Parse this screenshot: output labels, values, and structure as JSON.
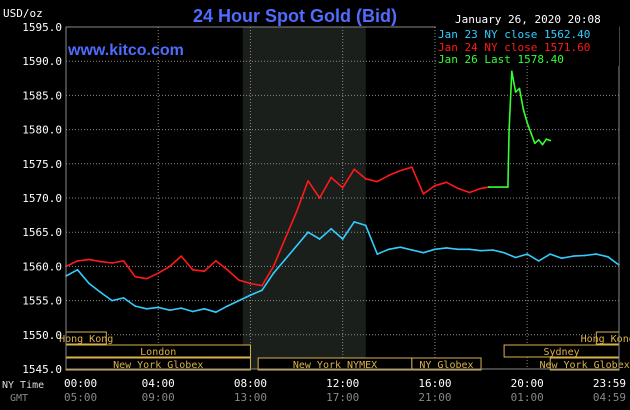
{
  "header": {
    "title": "24 Hour Spot Gold (Bid)",
    "website": "www.kitco.com",
    "timestamp": "January 26, 2020 20:08",
    "y_unit": "USD/oz"
  },
  "legend": [
    {
      "label": "Jan 23 NY close 1562.40",
      "color": "#33ccff"
    },
    {
      "label": "Jan 24 NY close 1571.60",
      "color": "#ff1a1a"
    },
    {
      "label": "Jan 26 Last 1578.40",
      "color": "#33ff33"
    }
  ],
  "colors": {
    "background": "#000000",
    "plot_background": "#000000",
    "shaded_session": "#1b1f1b",
    "grid": "#8a8a8a",
    "axis_text": "#ffffff",
    "title": "#4f6cff",
    "website": "#4f6cff",
    "session_bar_fill": "#000000",
    "session_bar_text": "#d9b24a",
    "session_bar_border": "#d9b24a"
  },
  "sessions": {
    "rows": [
      [
        {
          "label": "Hong Kong",
          "start": 0,
          "end": 105
        },
        {
          "label": "Hong Kong",
          "start": 1380,
          "end": 1439
        }
      ],
      [
        {
          "label": "London",
          "start": 0,
          "end": 480
        },
        {
          "label": "Sydney",
          "start": 1140,
          "end": 1439
        }
      ],
      [
        {
          "label": "New York Globex",
          "start": 0,
          "end": 480
        },
        {
          "label": "New York NYMEX",
          "start": 500,
          "end": 900
        },
        {
          "label": "NY Globex",
          "start": 900,
          "end": 1080
        },
        {
          "label": "New York Globex",
          "start": 1260,
          "end": 1439
        }
      ]
    ]
  },
  "bottom_labels": {
    "ny_time_label": "NY Time",
    "gmt_label": "GMT",
    "gmt_ticks": [
      "05:00",
      "09:00",
      "13:00",
      "17:00",
      "21:00",
      "01:00",
      "04:59"
    ]
  },
  "chart_data": {
    "type": "line",
    "title": "24 Hour Spot Gold (Bid)",
    "ylabel": "USD/oz",
    "xlabel": "NY Time",
    "x_unit": "minutes since 00:00 NY Time",
    "x_range": [
      0,
      1439
    ],
    "ylim": [
      1545.0,
      1595.0
    ],
    "y_ticks": [
      1545.0,
      1550.0,
      1555.0,
      1560.0,
      1565.0,
      1570.0,
      1575.0,
      1580.0,
      1585.0,
      1590.0,
      1595.0
    ],
    "y_tick_labels": [
      "1545.0",
      "1550.0",
      "1555.0",
      "1560.0",
      "1565.0",
      "1570.0",
      "1575.0",
      "1580.0",
      "1585.0",
      "1590.0",
      "1595.0"
    ],
    "x_ticks": [
      0,
      240,
      480,
      720,
      960,
      1200,
      1439
    ],
    "x_tick_labels": [
      "00:00",
      "04:00",
      "08:00",
      "12:00",
      "16:00",
      "20:00",
      "23:59"
    ],
    "grid": true,
    "shaded_x_range": [
      460,
      780
    ],
    "legend_position": "top-right",
    "series": [
      {
        "name": "Jan 23 NY close 1562.40",
        "color": "#33ccff",
        "x": [
          0,
          30,
          60,
          90,
          120,
          150,
          180,
          210,
          240,
          270,
          300,
          330,
          360,
          390,
          420,
          450,
          480,
          510,
          540,
          570,
          600,
          630,
          660,
          690,
          720,
          750,
          780,
          810,
          840,
          870,
          900,
          930,
          960,
          990,
          1020,
          1050,
          1080,
          1110,
          1140,
          1170,
          1200,
          1230,
          1260,
          1290,
          1320,
          1350,
          1380,
          1410,
          1439
        ],
        "y": [
          1558.6,
          1559.5,
          1557.5,
          1556.2,
          1555.0,
          1555.4,
          1554.2,
          1553.8,
          1554.0,
          1553.6,
          1553.9,
          1553.4,
          1553.8,
          1553.3,
          1554.2,
          1555.0,
          1555.8,
          1556.5,
          1559.0,
          1561.0,
          1563.0,
          1565.0,
          1564.0,
          1565.5,
          1564.0,
          1566.5,
          1566.0,
          1561.8,
          1562.5,
          1562.8,
          1562.4,
          1562.0,
          1562.5,
          1562.7,
          1562.5,
          1562.5,
          1562.3,
          1562.4,
          1562.0,
          1561.3,
          1561.8,
          1560.8,
          1561.8,
          1561.2,
          1561.5,
          1561.6,
          1561.8,
          1561.4,
          1560.2
        ]
      },
      {
        "name": "Jan 24 NY close 1571.60",
        "color": "#ff1a1a",
        "x": [
          0,
          30,
          60,
          90,
          120,
          150,
          180,
          210,
          240,
          270,
          300,
          330,
          360,
          390,
          420,
          450,
          480,
          510,
          540,
          570,
          600,
          630,
          660,
          690,
          720,
          750,
          780,
          810,
          840,
          870,
          900,
          930,
          960,
          990,
          1020,
          1050,
          1080,
          1100
        ],
        "y": [
          1560.0,
          1560.8,
          1561.0,
          1560.7,
          1560.5,
          1560.8,
          1558.5,
          1558.2,
          1559.0,
          1560.0,
          1561.5,
          1559.5,
          1559.3,
          1560.8,
          1559.5,
          1558.0,
          1557.5,
          1557.2,
          1560.0,
          1564.0,
          1568.0,
          1572.5,
          1570.0,
          1573.0,
          1571.5,
          1574.2,
          1572.8,
          1572.4,
          1573.3,
          1574.0,
          1574.5,
          1570.6,
          1571.8,
          1572.3,
          1571.4,
          1570.8,
          1571.4,
          1571.6
        ]
      },
      {
        "name": "Jan 26 Last 1578.40",
        "color": "#33ff33",
        "x": [
          1100,
          1150,
          1153,
          1160,
          1170,
          1180,
          1190,
          1200,
          1210,
          1220,
          1230,
          1240,
          1250,
          1260
        ],
        "y": [
          1571.6,
          1571.6,
          1580.0,
          1588.5,
          1585.5,
          1586.0,
          1583.0,
          1581.0,
          1579.5,
          1578.0,
          1578.5,
          1577.8,
          1578.6,
          1578.4
        ]
      }
    ]
  }
}
